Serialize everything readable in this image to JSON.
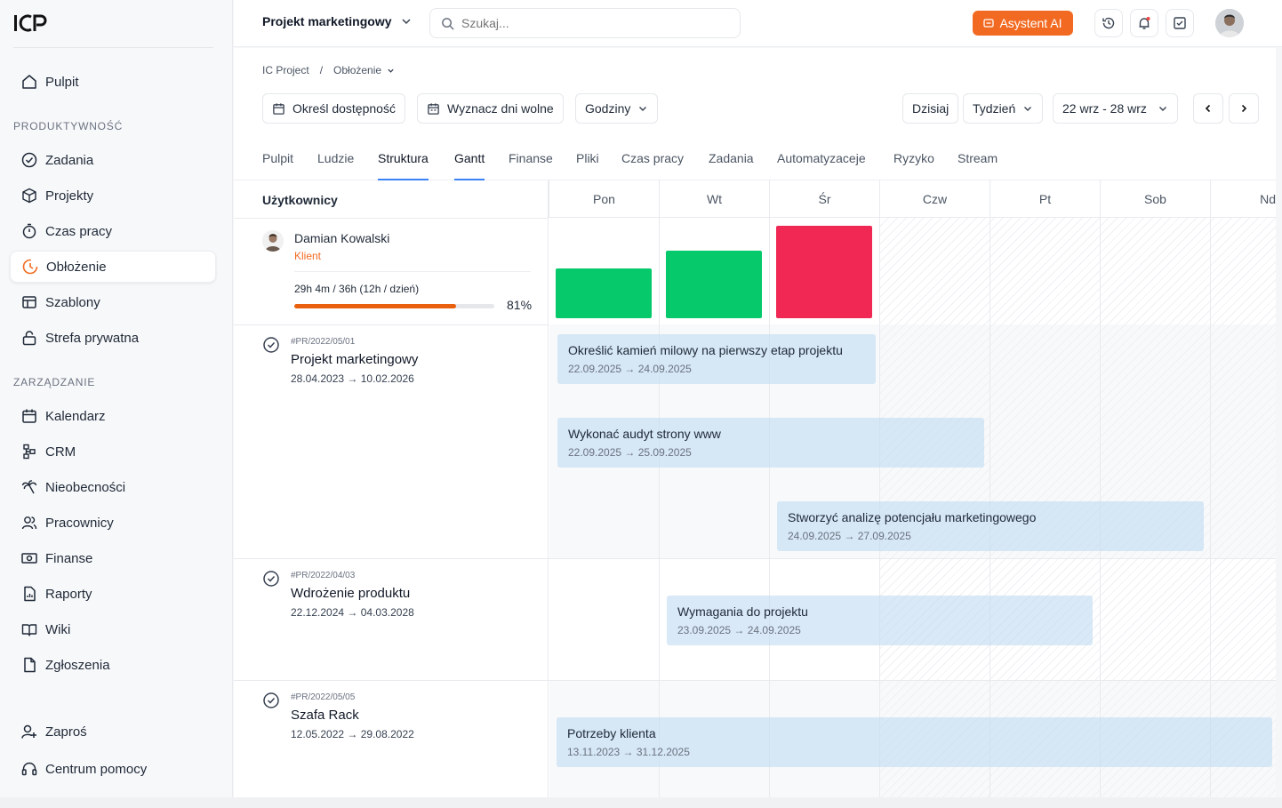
{
  "sidebar": {
    "logo": "ICP",
    "items_top": [
      {
        "label": "Pulpit",
        "icon": "home-icon"
      }
    ],
    "section_productivity": "PRODUKTYWNOŚĆ",
    "productivity": [
      {
        "label": "Zadania",
        "icon": "check-circle-icon"
      },
      {
        "label": "Projekty",
        "icon": "box-icon"
      },
      {
        "label": "Czas pracy",
        "icon": "stopwatch-icon"
      },
      {
        "label": "Obłożenie",
        "icon": "workload-icon",
        "active": true
      },
      {
        "label": "Szablony",
        "icon": "template-icon"
      },
      {
        "label": "Strefa prywatna",
        "icon": "lock-icon"
      }
    ],
    "section_management": "ZARZĄDZANIE",
    "management": [
      {
        "label": "Kalendarz",
        "icon": "calendar-icon"
      },
      {
        "label": "CRM",
        "icon": "crm-icon"
      },
      {
        "label": "Nieobecności",
        "icon": "palm-icon"
      },
      {
        "label": "Pracownicy",
        "icon": "users-icon"
      },
      {
        "label": "Finanse",
        "icon": "money-icon"
      },
      {
        "label": "Raporty",
        "icon": "report-icon"
      },
      {
        "label": "Wiki",
        "icon": "book-icon"
      },
      {
        "label": "Zgłoszenia",
        "icon": "ticket-icon"
      }
    ],
    "invite": "Zaproś",
    "help": "Centrum pomocy"
  },
  "topbar": {
    "project": "Projekt marketingowy",
    "search_placeholder": "Szukaj...",
    "ai_button": "Asystent AI"
  },
  "breadcrumb": {
    "root": "IC Project",
    "sep": "/",
    "current": "Obłożenie"
  },
  "toolbar": {
    "availability": "Określ dostępność",
    "days_off": "Wyznacz dni wolne",
    "unit": "Godziny",
    "today": "Dzisiaj",
    "range": "Tydzień",
    "dates": "22 wrz - 28 wrz"
  },
  "tabs": [
    "Pulpit",
    "Ludzie",
    "Struktura",
    "Gantt",
    "Finanse",
    "Pliki",
    "Czas pracy",
    "Zadania",
    "Automatyzaceje",
    "Ryzyko",
    "Stream"
  ],
  "grid": {
    "users_header": "Użytkownicy",
    "days": [
      "Pon",
      "Wt",
      "Śr",
      "Czw",
      "Pt",
      "Sob",
      "Nd"
    ],
    "user": {
      "name": "Damian Kowalski",
      "role": "Klient",
      "hours": "29h 4m / 36h (12h / dzień)",
      "percent": "81%",
      "progress": 0.81
    },
    "projects": [
      {
        "code": "#PR/2022/05/01",
        "name": "Projekt marketingowy",
        "dates": "28.04.2023 → 10.02.2026"
      },
      {
        "code": "#PR/2022/04/03",
        "name": "Wdrożenie produktu",
        "dates": "22.12.2024 → 04.03.2028"
      },
      {
        "code": "#PR/2022/05/05",
        "name": "Szafa Rack",
        "dates": "12.05.2022 → 29.08.2022"
      }
    ],
    "tasks": [
      {
        "title": "Określić kamień milowy na pierwszy etap projektu",
        "dates": "22.09.2025 → 24.09.2025"
      },
      {
        "title": "Wykonać audyt strony www",
        "dates": "22.09.2025 → 25.09.2025"
      },
      {
        "title": "Stworzyć analizę potencjału marketingowego",
        "dates": "24.09.2025 → 27.09.2025"
      },
      {
        "title": "Wymagania do projektu",
        "dates": "23.09.2025 → 24.09.2025"
      },
      {
        "title": "Potrzeby klienta",
        "dates": "13.11.2023 → 31.12.2025"
      }
    ],
    "load_colors": {
      "ok": "#05c96b",
      "over": "#f02853"
    }
  }
}
